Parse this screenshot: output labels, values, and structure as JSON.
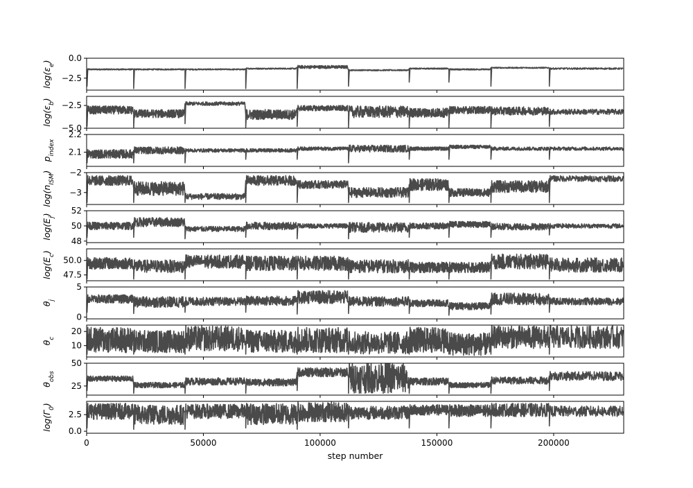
{
  "chart_data": {
    "type": "line",
    "xlabel": "step number",
    "xlim": [
      0,
      230000
    ],
    "xticks": [
      0,
      50000,
      100000,
      150000,
      200000
    ],
    "xtick_labels": [
      "0",
      "50000",
      "100000",
      "150000",
      "200000"
    ],
    "trace_color": "#4a4a4a",
    "segment_boundaries": [
      0,
      20000,
      42000,
      68000,
      90000,
      112000,
      138000,
      155000,
      173000,
      198000,
      230000
    ],
    "panels": [
      {
        "id": "log_eps_e",
        "ylabel": "log(ε_e)",
        "ylim": [
          -4.0,
          0.0
        ],
        "yticks": [
          0.0,
          -2.5
        ],
        "ytick_labels": [
          "0.0",
          "−2.5"
        ],
        "segment_centers": [
          -1.4,
          -1.4,
          -1.4,
          -1.3,
          -1.1,
          -1.5,
          -1.3,
          -1.4,
          -1.2,
          -1.3
        ],
        "segment_spread": [
          0.15,
          0.15,
          0.15,
          0.15,
          0.4,
          0.15,
          0.15,
          0.15,
          0.15,
          0.2
        ],
        "spike_min": [
          -3.5,
          -3.8,
          -3.8,
          -3.8,
          -3.8,
          -3.5,
          -3.0,
          -3.0,
          -3.5,
          -3.5
        ]
      },
      {
        "id": "log_eps_b",
        "ylabel": "log(ε_b)",
        "ylim": [
          -5.0,
          -1.5
        ],
        "yticks": [
          -2.5,
          -5.0
        ],
        "ytick_labels": [
          "−2.5",
          "−5.0"
        ],
        "segment_centers": [
          -3.0,
          -3.4,
          -2.3,
          -3.5,
          -2.8,
          -3.2,
          -3.3,
          -3.0,
          -3.1,
          -3.2
        ],
        "segment_spread": [
          0.9,
          0.9,
          0.4,
          1.1,
          0.6,
          1.3,
          1.0,
          0.8,
          0.9,
          0.6
        ],
        "spike_min": [
          -4.8,
          -4.9,
          -4.5,
          -4.9,
          -4.8,
          -4.9,
          -4.9,
          -4.9,
          -4.9,
          -4.8
        ]
      },
      {
        "id": "p_index",
        "ylabel": "p_index",
        "ylim": [
          2.02,
          2.2
        ],
        "yticks": [
          2.2,
          2.1
        ],
        "ytick_labels": [
          "2.2",
          "2.1"
        ],
        "segment_centers": [
          2.09,
          2.11,
          2.11,
          2.11,
          2.12,
          2.12,
          2.12,
          2.13,
          2.12,
          2.12
        ],
        "segment_spread": [
          0.05,
          0.04,
          0.02,
          0.02,
          0.02,
          0.04,
          0.02,
          0.02,
          0.02,
          0.02
        ],
        "spike_min": [
          2.04,
          2.04,
          2.04,
          2.06,
          2.06,
          2.04,
          2.06,
          2.06,
          2.06,
          2.06
        ]
      },
      {
        "id": "log_n_ism",
        "ylabel": "log(n_ISM)",
        "ylim": [
          -3.6,
          -2.0
        ],
        "yticks": [
          -2,
          -3
        ],
        "ytick_labels": [
          "−2",
          "−3"
        ],
        "segment_centers": [
          -2.4,
          -2.8,
          -3.2,
          -2.4,
          -2.6,
          -3.0,
          -2.6,
          -3.0,
          -2.7,
          -2.3
        ],
        "segment_spread": [
          0.5,
          0.7,
          0.3,
          0.5,
          0.4,
          0.5,
          0.6,
          0.4,
          0.6,
          0.3
        ],
        "spike_min": [
          -3.5,
          -3.5,
          -3.5,
          -3.5,
          -3.5,
          -3.5,
          -3.5,
          -3.5,
          -3.5,
          -3.5
        ]
      },
      {
        "id": "log_E_j",
        "ylabel": "log(E_j)",
        "ylim": [
          47.8,
          52.0
        ],
        "yticks": [
          52,
          50,
          48
        ],
        "ytick_labels": [
          "52",
          "50",
          "48"
        ],
        "segment_centers": [
          50.0,
          50.5,
          49.6,
          50.0,
          50.0,
          49.8,
          50.0,
          50.2,
          49.9,
          50.0
        ],
        "segment_spread": [
          1.0,
          1.2,
          0.7,
          1.0,
          0.6,
          1.3,
          0.8,
          0.8,
          0.9,
          0.6
        ],
        "spike_min": [
          48.5,
          48.5,
          48.3,
          48.5,
          48.3,
          48.3,
          48.5,
          48.5,
          48.5,
          48.8
        ]
      },
      {
        "id": "log_E_c",
        "ylabel": "log(E_c)",
        "ylim": [
          46.5,
          52.0
        ],
        "yticks": [
          50.0,
          47.5
        ],
        "ytick_labels": [
          "50.0",
          "47.5"
        ],
        "segment_centers": [
          49.5,
          49.0,
          49.8,
          49.5,
          49.5,
          49.0,
          48.8,
          48.8,
          49.8,
          49.2
        ],
        "segment_spread": [
          2.0,
          2.2,
          2.3,
          2.5,
          2.5,
          2.3,
          1.8,
          1.8,
          2.6,
          2.5
        ],
        "spike_min": [
          46.8,
          46.8,
          46.8,
          46.8,
          46.8,
          46.8,
          46.8,
          46.8,
          46.8,
          46.8
        ]
      },
      {
        "id": "theta_j",
        "ylabel": "θ_j",
        "ylim": [
          -0.3,
          5.0
        ],
        "yticks": [
          5,
          0
        ],
        "ytick_labels": [
          "5",
          "0"
        ],
        "segment_centers": [
          3.0,
          2.5,
          2.6,
          2.7,
          3.3,
          2.6,
          2.3,
          1.8,
          3.0,
          2.6
        ],
        "segment_spread": [
          1.4,
          1.8,
          1.4,
          1.6,
          2.2,
          1.6,
          1.2,
          1.2,
          2.0,
          1.2
        ],
        "spike_min": [
          0.8,
          0.6,
          0.8,
          0.8,
          0.5,
          0.6,
          0.6,
          0.3,
          0.5,
          0.8
        ]
      },
      {
        "id": "theta_c",
        "ylabel": "θ_c",
        "ylim": [
          2.0,
          24.5
        ],
        "yticks": [
          20,
          10
        ],
        "ytick_labels": [
          "20",
          "10"
        ],
        "segment_centers": [
          14.0,
          13.0,
          15.0,
          13.0,
          14.0,
          12.0,
          14.0,
          11.0,
          16.0,
          16.0
        ],
        "segment_spread": [
          18.0,
          16.0,
          18.0,
          16.0,
          18.0,
          16.0,
          18.0,
          16.0,
          16.0,
          16.0
        ],
        "spike_min": [
          4.0,
          4.0,
          4.0,
          4.0,
          4.0,
          4.0,
          4.0,
          4.0,
          4.0,
          4.0
        ]
      },
      {
        "id": "theta_obs",
        "ylabel": "θ_obs",
        "ylim": [
          15.0,
          50.0
        ],
        "yticks": [
          50,
          25
        ],
        "ytick_labels": [
          "50",
          "25"
        ],
        "segment_centers": [
          33.0,
          26.0,
          30.0,
          29.0,
          40.0,
          34.0,
          30.0,
          26.0,
          31.0,
          36.0
        ],
        "segment_spread": [
          6.0,
          6.0,
          8.0,
          8.0,
          10.0,
          34.0,
          8.0,
          6.0,
          8.0,
          10.0
        ],
        "spike_min": [
          20.0,
          17.0,
          17.0,
          17.0,
          20.0,
          17.0,
          17.0,
          17.0,
          17.0,
          20.0
        ]
      },
      {
        "id": "log_Gamma_0",
        "ylabel": "log(Γ_0)",
        "ylim": [
          -0.3,
          4.5
        ],
        "yticks": [
          2.5,
          0.0
        ],
        "ytick_labels": [
          "2.5",
          "0.0"
        ],
        "segment_centers": [
          3.0,
          2.5,
          3.0,
          2.6,
          2.9,
          2.8,
          3.2,
          3.1,
          3.2,
          3.0
        ],
        "segment_spread": [
          2.4,
          3.0,
          2.2,
          3.2,
          3.0,
          2.0,
          1.6,
          1.8,
          2.0,
          1.6
        ],
        "spike_min": [
          0.5,
          0.3,
          0.3,
          0.5,
          0.3,
          0.5,
          0.5,
          0.5,
          0.5,
          0.8
        ]
      }
    ]
  }
}
